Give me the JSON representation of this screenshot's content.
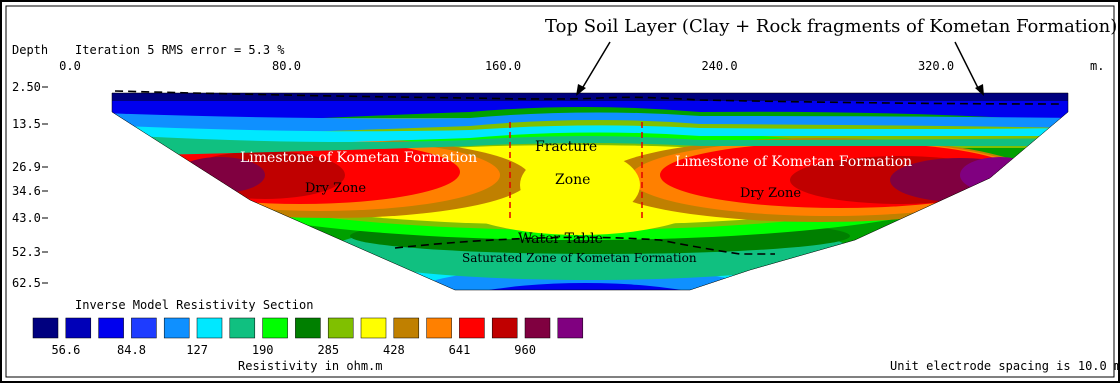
{
  "header": {
    "depth_label": "Depth",
    "iteration_label": "Iteration 5 RMS error = 5.3 %",
    "units_label": "m."
  },
  "x_axis": {
    "ticks": [
      "0.0",
      "80.0",
      "160.0",
      "240.0",
      "320.0"
    ],
    "values": [
      0,
      80,
      160,
      240,
      320
    ],
    "max": 390
  },
  "depth_axis": {
    "ticks": [
      "2.50",
      "13.5",
      "26.9",
      "34.6",
      "43.0",
      "52.3",
      "62.5"
    ],
    "values": [
      2.5,
      13.5,
      26.9,
      34.6,
      43.0,
      52.3,
      62.5
    ]
  },
  "annotations": {
    "top_soil": "Top Soil Layer (Clay + Rock fragments of Kometan Formation)",
    "limestone_left": "Limestone of Kometan Formation",
    "dry_left": "Dry Zone",
    "fracture_1": "Fracture",
    "fracture_2": "Zone",
    "limestone_right": "Limestone of Kometan Formation",
    "dry_right": "Dry  Zone",
    "water_table": "Water Table",
    "saturated": "Saturated  Zone of Kometan Formation"
  },
  "legend": {
    "title": "Inverse Model Resistivity Section",
    "colors": [
      "#00007f",
      "#0000b8",
      "#0000ee",
      "#1e3cff",
      "#0f90ff",
      "#00e8ff",
      "#10c080",
      "#00ff00",
      "#007f00",
      "#80c000",
      "#ffff00",
      "#c08000",
      "#ff8000",
      "#ff0000",
      "#c00000",
      "#800040",
      "#800080"
    ],
    "labels": [
      "56.6",
      "84.8",
      "127",
      "190",
      "285",
      "428",
      "641",
      "960"
    ],
    "units": "Resistivity in ohm.m"
  },
  "footer": {
    "spacing_note": "Unit electrode spacing is 10.0 m."
  }
}
